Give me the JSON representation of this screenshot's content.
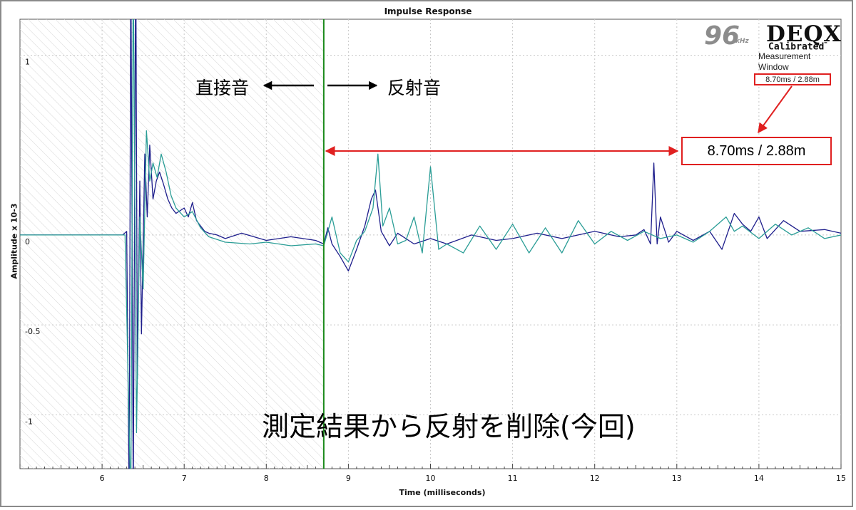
{
  "chart_data": {
    "type": "line",
    "title": "Impulse Response",
    "xlabel": "Time (milliseconds)",
    "ylabel": "Amplitude x 10-3",
    "xlim": [
      5.0,
      15.0
    ],
    "ylim": [
      -1.3,
      1.2
    ],
    "x_ticks": [
      6,
      7,
      8,
      9,
      10,
      11,
      12,
      13,
      14,
      15
    ],
    "y_ticks": [
      {
        "value": 1,
        "label": "1"
      },
      {
        "value": 0,
        "label": "0"
      },
      {
        "value": -0.5,
        "label": "-0.5"
      },
      {
        "value": -1,
        "label": "-1"
      }
    ],
    "grid": true,
    "measurement_window_ms": 8.7,
    "window_line_color": "#1a8a1a",
    "series": [
      {
        "color": "#1e1e8c",
        "points": [
          [
            5.0,
            0.0
          ],
          [
            6.25,
            0.0
          ],
          [
            6.3,
            0.02
          ],
          [
            6.33,
            -1.5
          ],
          [
            6.35,
            1.6
          ],
          [
            6.38,
            -1.5
          ],
          [
            6.41,
            1.6
          ],
          [
            6.43,
            -0.8
          ],
          [
            6.46,
            0.3
          ],
          [
            6.48,
            -0.55
          ],
          [
            6.52,
            0.45
          ],
          [
            6.55,
            0.1
          ],
          [
            6.58,
            0.5
          ],
          [
            6.62,
            0.2
          ],
          [
            6.66,
            0.3
          ],
          [
            6.7,
            0.35
          ],
          [
            6.75,
            0.28
          ],
          [
            6.8,
            0.2
          ],
          [
            6.85,
            0.15
          ],
          [
            6.9,
            0.12
          ],
          [
            7.0,
            0.15
          ],
          [
            7.05,
            0.1
          ],
          [
            7.1,
            0.18
          ],
          [
            7.15,
            0.08
          ],
          [
            7.2,
            0.05
          ],
          [
            7.25,
            0.02
          ],
          [
            7.3,
            0.01
          ],
          [
            7.4,
            0.0
          ],
          [
            7.5,
            -0.02
          ],
          [
            7.7,
            0.01
          ],
          [
            8.0,
            -0.03
          ],
          [
            8.3,
            -0.01
          ],
          [
            8.6,
            -0.03
          ],
          [
            8.7,
            -0.05
          ],
          [
            8.75,
            0.04
          ],
          [
            8.8,
            -0.05
          ],
          [
            8.9,
            -0.12
          ],
          [
            9.0,
            -0.2
          ],
          [
            9.1,
            -0.08
          ],
          [
            9.2,
            0.05
          ],
          [
            9.28,
            0.2
          ],
          [
            9.33,
            0.25
          ],
          [
            9.4,
            0.02
          ],
          [
            9.5,
            -0.06
          ],
          [
            9.6,
            0.01
          ],
          [
            9.8,
            -0.05
          ],
          [
            10.0,
            -0.02
          ],
          [
            10.2,
            -0.05
          ],
          [
            10.5,
            0.0
          ],
          [
            10.8,
            -0.03
          ],
          [
            11.0,
            -0.02
          ],
          [
            11.3,
            0.01
          ],
          [
            11.6,
            -0.02
          ],
          [
            12.0,
            0.02
          ],
          [
            12.3,
            -0.01
          ],
          [
            12.5,
            0.0
          ],
          [
            12.6,
            0.03
          ],
          [
            12.68,
            -0.05
          ],
          [
            12.72,
            0.4
          ],
          [
            12.76,
            -0.05
          ],
          [
            12.8,
            0.1
          ],
          [
            12.9,
            -0.04
          ],
          [
            13.0,
            0.02
          ],
          [
            13.2,
            -0.03
          ],
          [
            13.4,
            0.02
          ],
          [
            13.55,
            -0.08
          ],
          [
            13.7,
            0.12
          ],
          [
            13.8,
            0.06
          ],
          [
            13.9,
            0.02
          ],
          [
            14.0,
            0.1
          ],
          [
            14.1,
            -0.02
          ],
          [
            14.3,
            0.08
          ],
          [
            14.5,
            0.02
          ],
          [
            14.8,
            0.03
          ],
          [
            15.0,
            0.01
          ]
        ]
      },
      {
        "color": "#2a9d96",
        "points": [
          [
            5.0,
            0.0
          ],
          [
            6.28,
            0.0
          ],
          [
            6.35,
            -1.5
          ],
          [
            6.38,
            1.5
          ],
          [
            6.42,
            -1.1
          ],
          [
            6.46,
            0.1
          ],
          [
            6.5,
            -0.3
          ],
          [
            6.54,
            0.58
          ],
          [
            6.58,
            0.3
          ],
          [
            6.62,
            0.4
          ],
          [
            6.67,
            0.32
          ],
          [
            6.72,
            0.45
          ],
          [
            6.78,
            0.35
          ],
          [
            6.84,
            0.22
          ],
          [
            6.9,
            0.15
          ],
          [
            7.0,
            0.1
          ],
          [
            7.1,
            0.13
          ],
          [
            7.2,
            0.04
          ],
          [
            7.3,
            -0.01
          ],
          [
            7.5,
            -0.04
          ],
          [
            7.8,
            -0.05
          ],
          [
            8.0,
            -0.04
          ],
          [
            8.3,
            -0.06
          ],
          [
            8.6,
            -0.05
          ],
          [
            8.7,
            -0.06
          ],
          [
            8.8,
            0.1
          ],
          [
            8.9,
            -0.1
          ],
          [
            9.0,
            -0.15
          ],
          [
            9.1,
            -0.03
          ],
          [
            9.2,
            0.02
          ],
          [
            9.3,
            0.15
          ],
          [
            9.36,
            0.45
          ],
          [
            9.42,
            0.05
          ],
          [
            9.5,
            0.15
          ],
          [
            9.6,
            -0.05
          ],
          [
            9.7,
            -0.03
          ],
          [
            9.8,
            0.1
          ],
          [
            9.9,
            -0.1
          ],
          [
            10.0,
            0.38
          ],
          [
            10.1,
            -0.08
          ],
          [
            10.2,
            -0.05
          ],
          [
            10.4,
            -0.1
          ],
          [
            10.6,
            0.05
          ],
          [
            10.8,
            -0.08
          ],
          [
            11.0,
            0.06
          ],
          [
            11.2,
            -0.1
          ],
          [
            11.4,
            0.04
          ],
          [
            11.6,
            -0.1
          ],
          [
            11.8,
            0.08
          ],
          [
            12.0,
            -0.05
          ],
          [
            12.2,
            0.02
          ],
          [
            12.4,
            -0.03
          ],
          [
            12.6,
            0.02
          ],
          [
            12.8,
            -0.02
          ],
          [
            13.0,
            0.0
          ],
          [
            13.2,
            -0.04
          ],
          [
            13.4,
            0.02
          ],
          [
            13.6,
            0.1
          ],
          [
            13.7,
            0.02
          ],
          [
            13.8,
            0.05
          ],
          [
            14.0,
            -0.02
          ],
          [
            14.2,
            0.06
          ],
          [
            14.4,
            0.0
          ],
          [
            14.6,
            0.04
          ],
          [
            14.8,
            -0.02
          ],
          [
            15.0,
            0.0
          ]
        ]
      }
    ]
  },
  "annotations": {
    "direct_sound": "直接音",
    "reflected_sound": "反射音",
    "window_readout": "8.70ms / 2.88m",
    "caption": "測定結果から反射を削除(今回)"
  },
  "logo": {
    "rate": "96",
    "rate_unit": "kHz",
    "brand": "DEQX",
    "tagline": "Calibrated",
    "trademark": "™"
  },
  "measurement_window": {
    "label": "Measurement Window",
    "value": "8.70ms / 2.88m"
  },
  "colors": {
    "annotation_red": "#e02020",
    "window_green": "#1a8a1a"
  }
}
